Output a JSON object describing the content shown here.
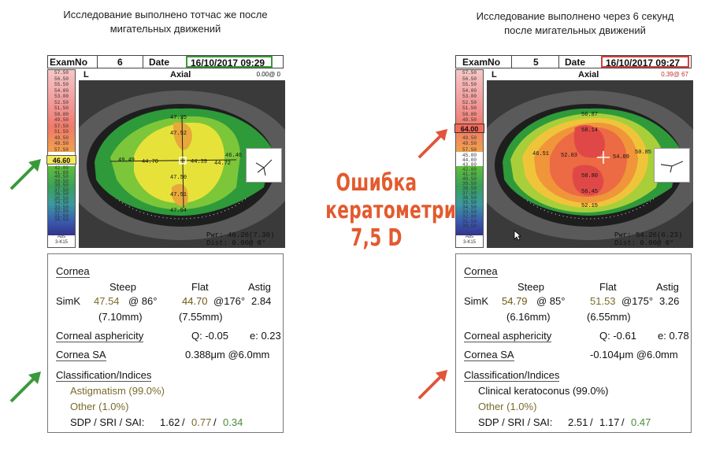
{
  "captions": {
    "left": [
      "Исследование выполнено тотчас же после",
      "мигательных движений"
    ],
    "right": [
      "Исследование выполнено через 6 секунд",
      "после мигательных движений"
    ]
  },
  "center_text": [
    "Ошибка",
    "кератометрии",
    "7,5 D"
  ],
  "colors": {
    "green_arrow": "#3a9a3a",
    "red_arrow": "#e0553a",
    "accent": "#e35a2e"
  },
  "left": {
    "exam_label": "ExamNo",
    "exam_no": "6",
    "date_label": "Date",
    "date": "16/10/2017 09:29",
    "date_border": "#3a9a3a",
    "eye": "L",
    "map_type": "Axial",
    "top_right": "0.00@ 0",
    "scale": [
      "57.50",
      "56.50",
      "55.50",
      "54.00",
      "53.00",
      "52.50",
      "51.50",
      "50.00",
      "49.50",
      "57.50",
      "51.50",
      "49.50"
    ],
    "scale_low": [
      "45.00",
      "44.00",
      "43.00",
      "42.00",
      "41.00",
      "40.50",
      "39.50",
      "38.50",
      "37.50",
      "36.50",
      "35.50",
      "34.50",
      "33.50",
      "32.00",
      "31.50",
      "30.50"
    ],
    "selected": "46.60",
    "abs": [
      "Abs",
      "3-K15"
    ],
    "map_values": [
      "47.35",
      "47.52",
      "49.49",
      "44.70",
      "44.39",
      "44.72",
      "46.46",
      "47.50",
      "47.51",
      "47.04"
    ],
    "pwr": "Pwr: 46.26(7.30)",
    "dist": "Dist: 0.00@ 0°",
    "cornea": "Cornea",
    "steep": "Steep",
    "flat": "Flat",
    "astig": "Astig",
    "simk": "SimK",
    "steep_val": "47.54",
    "steep_axis": "@ 86°",
    "flat_val": "44.70",
    "flat_axis": "@176°",
    "astig_val": "2.84",
    "steep_mm": "(7.10mm)",
    "flat_mm": "(7.55mm)",
    "asph": "Corneal asphericity",
    "q": "Q: -0.05",
    "e": "e: 0.23",
    "sa": "Cornea SA",
    "sa_val": "0.388μm @6.0mm",
    "class": "Classification/Indices",
    "c1": "Astigmatism (99.0%)",
    "c2": "Other (1.0%)",
    "sdp_label": "SDP / SRI / SAI:",
    "sdp": "1.62",
    "sri": "0.77",
    "sai": "0.34"
  },
  "right": {
    "exam_label": "ExamNo",
    "exam_no": "5",
    "date_label": "Date",
    "date": "16/10/2017 09:27",
    "date_border": "#d04040",
    "eye": "L",
    "map_type": "Axial",
    "top_right": "0.39@ 67",
    "scale": [
      "57.50",
      "56.50",
      "55.50",
      "54.00",
      "53.00",
      "52.50",
      "51.50",
      "50.00",
      "49.50",
      "57.50",
      "51.50",
      "49.50"
    ],
    "scale_low": [
      "45.00",
      "44.00",
      "43.00",
      "42.00",
      "41.00",
      "40.50",
      "39.50",
      "38.50",
      "37.50",
      "36.50",
      "35.50",
      "34.50",
      "33.50",
      "32.00",
      "31.50",
      "30.50"
    ],
    "selected": "64.00",
    "abs": [
      "Abs",
      "3-K15"
    ],
    "map_values": [
      "56.87",
      "58.14",
      "46.51",
      "52.03",
      "54.09",
      "50.85",
      "58.80",
      "56.45",
      "52.15"
    ],
    "pwr": "Pwr: 54.26(6.23)",
    "dist": "Dist: 0.00@ 0°",
    "cornea": "Cornea",
    "steep": "Steep",
    "flat": "Flat",
    "astig": "Astig",
    "simk": "SimK",
    "steep_val": "54.79",
    "steep_axis": "@ 85°",
    "flat_val": "51.53",
    "flat_axis": "@175°",
    "astig_val": "3.26",
    "steep_mm": "(6.16mm)",
    "flat_mm": "(6.55mm)",
    "asph": "Corneal asphericity",
    "q": "Q: -0.61",
    "e": "e: 0.78",
    "sa": "Cornea SA",
    "sa_val": "-0.104μm @6.0mm",
    "class": "Classification/Indices",
    "c1": "Clinical keratoconus (99.0%)",
    "c2": "Other (1.0%)",
    "sdp_label": "SDP / SRI / SAI:",
    "sdp": "2.51",
    "sri": "1.17",
    "sai": "0.47"
  }
}
